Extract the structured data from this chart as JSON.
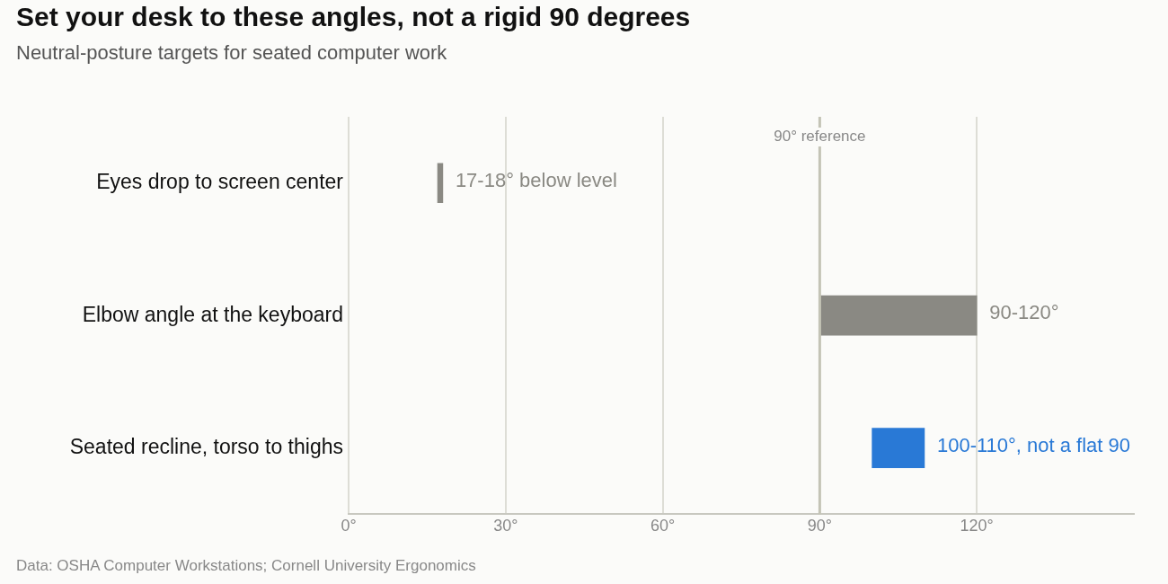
{
  "chart_data": {
    "type": "bar",
    "orientation": "horizontal",
    "title": "Set your desk to these angles, not a rigid 90 degrees",
    "subtitle": "Neutral-posture targets for seated computer work",
    "categories": [
      "Eyes drop to screen center",
      "Elbow angle at the keyboard",
      "Seated recline, torso to thighs"
    ],
    "base": [
      17,
      90,
      100
    ],
    "values": [
      1,
      30,
      10
    ],
    "colors": [
      "#8a8983",
      "#8a8983",
      "#2979d6"
    ],
    "value_labels": [
      "17-18° below level",
      "90-120°",
      "100-110°, not a flat 90"
    ],
    "xlim": [
      0,
      150
    ],
    "xticks": [
      {
        "value": 0,
        "label": "0°"
      },
      {
        "value": 30,
        "label": "30°"
      },
      {
        "value": 60,
        "label": "60°"
      },
      {
        "value": 90,
        "label": "90°"
      },
      {
        "value": 120,
        "label": "120°"
      }
    ],
    "grid": "x",
    "ref_lines": [
      {
        "axis": "x",
        "value": 90,
        "label": "90° reference",
        "color": "#c4c4b6"
      }
    ],
    "annotations": [
      "Data: OSHA Computer Workstations; Cornell University Ergonomics"
    ]
  }
}
